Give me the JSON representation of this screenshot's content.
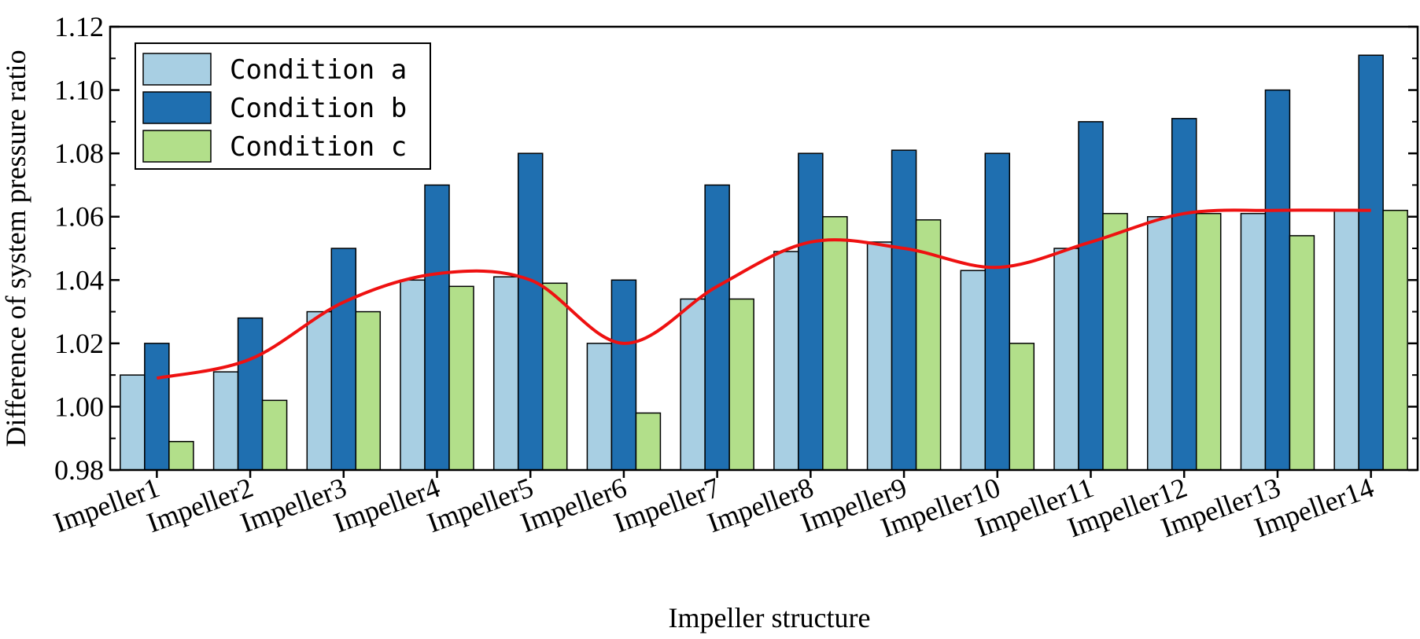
{
  "chart_data": {
    "type": "bar",
    "title": "",
    "xlabel": "Impeller structure",
    "ylabel": "Difference of system pressure ratio",
    "categories": [
      "Impeller1",
      "Impeller2",
      "Impeller3",
      "Impeller4",
      "Impeller5",
      "Impeller6",
      "Impeller7",
      "Impeller8",
      "Impeller9",
      "Impeller10",
      "Impeller11",
      "Impeller12",
      "Impeller13",
      "Impeller14"
    ],
    "ylim": [
      0.98,
      1.12
    ],
    "yticks": [
      0.98,
      1.0,
      1.02,
      1.04,
      1.06,
      1.08,
      1.1,
      1.12
    ],
    "ytick_labels": [
      "0.98",
      "1.00",
      "1.02",
      "1.04",
      "1.06",
      "1.08",
      "1.10",
      "1.12"
    ],
    "legend_position": "top-left",
    "series": [
      {
        "name": "Condition a",
        "color": "#a8cfe3",
        "values": [
          1.01,
          1.011,
          1.03,
          1.04,
          1.041,
          1.02,
          1.034,
          1.049,
          1.052,
          1.043,
          1.05,
          1.06,
          1.061,
          1.062
        ]
      },
      {
        "name": "Condition b",
        "color": "#1f6fb0",
        "values": [
          1.02,
          1.028,
          1.05,
          1.07,
          1.08,
          1.04,
          1.07,
          1.08,
          1.081,
          1.08,
          1.09,
          1.091,
          1.1,
          1.111
        ]
      },
      {
        "name": "Condition c",
        "color": "#b2df8a",
        "values": [
          0.989,
          1.002,
          1.03,
          1.038,
          1.039,
          0.998,
          1.034,
          1.06,
          1.059,
          1.02,
          1.061,
          1.061,
          1.054,
          1.062
        ]
      }
    ],
    "trend_line": {
      "color": "#ee1111",
      "values": [
        1.009,
        1.015,
        1.033,
        1.042,
        1.04,
        1.02,
        1.038,
        1.052,
        1.05,
        1.044,
        1.052,
        1.061,
        1.062,
        1.062
      ]
    }
  }
}
